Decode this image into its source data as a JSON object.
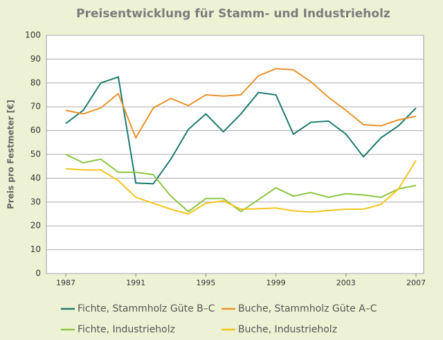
{
  "chart_data": {
    "type": "line",
    "title": "Preisentwicklung für Stamm- und Industrieholz",
    "y_label": "Preis pro Festmeter [€]",
    "x": [
      1987,
      1988,
      1989,
      1990,
      1991,
      1992,
      1993,
      1994,
      1995,
      1996,
      1997,
      1998,
      1999,
      2000,
      2001,
      2002,
      2003,
      2004,
      2005,
      2006,
      2007
    ],
    "xlim": [
      1987,
      2007
    ],
    "xticks": [
      1987,
      1991,
      1995,
      1999,
      2003,
      2007
    ],
    "ylim": [
      0,
      100
    ],
    "yticks": [
      0,
      10,
      20,
      30,
      40,
      50,
      60,
      70,
      80,
      90,
      100
    ],
    "grid": true,
    "series": [
      {
        "name": "Fichte, Stammholz Güte B–C",
        "color": "#1b7a6c",
        "values": [
          63,
          68.5,
          80,
          82.5,
          38,
          37.7,
          48,
          60.5,
          67,
          59.5,
          67,
          76,
          75,
          58.5,
          63.5,
          64,
          58.5,
          49,
          57,
          62,
          69.5
        ]
      },
      {
        "name": "Buche, Stammholz Güte A–C",
        "color": "#e8922c",
        "values": [
          68.5,
          67,
          69.5,
          75.5,
          57,
          69.5,
          73.5,
          70.5,
          75,
          74.5,
          75,
          83,
          86,
          85.5,
          80.5,
          74,
          68.5,
          62.5,
          62,
          64.5,
          66
        ]
      },
      {
        "name": "Fichte, Industrieholz",
        "color": "#8cc540",
        "values": [
          50,
          46.5,
          48,
          42.5,
          42.5,
          41.5,
          32.5,
          26,
          31.5,
          31.5,
          26,
          31,
          36,
          32.5,
          34,
          32,
          33.5,
          33,
          32,
          35.5,
          37
        ]
      },
      {
        "name": "Buche, Industrieholz",
        "color": "#f4c41c",
        "values": [
          44,
          43.5,
          43.5,
          39,
          32,
          29.5,
          27,
          25,
          29.5,
          30.5,
          27,
          27.2,
          27.5,
          26.3,
          25.8,
          26.5,
          27,
          27,
          29,
          35.5,
          47.5
        ]
      }
    ]
  }
}
